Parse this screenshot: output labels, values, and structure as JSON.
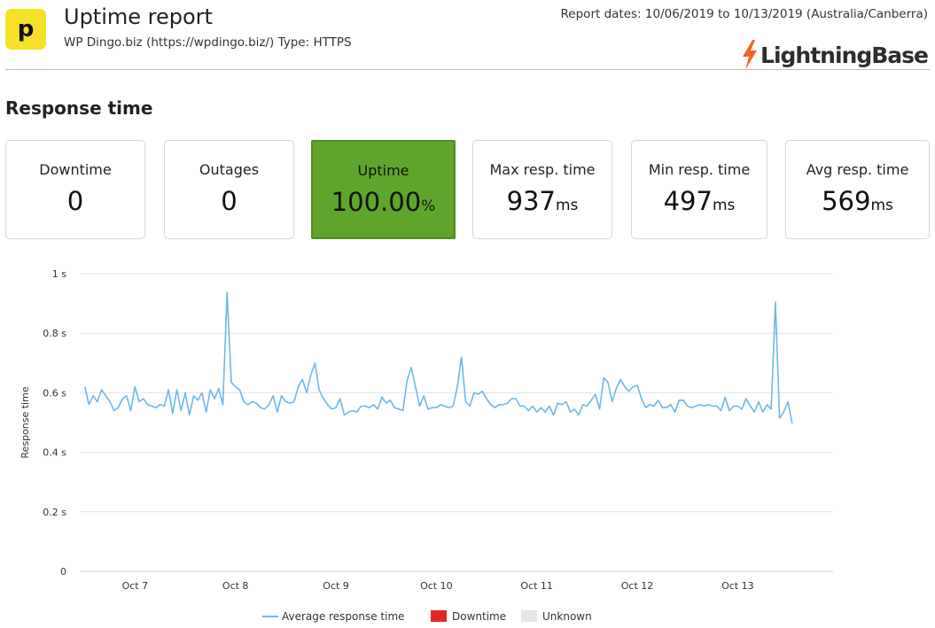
{
  "header": {
    "logo_glyph": "p",
    "title": "Uptime report",
    "subtitle": "WP Dingo.biz (https://wpdingo.biz/) Type: HTTPS",
    "report_dates": "Report dates: 10/06/2019 to 10/13/2019 (Australia/Canberra)",
    "brand_name": "LightningBase",
    "brand_icon": "lightning-bolt-icon",
    "brand_icon_color": "#f26722"
  },
  "section_title": "Response time",
  "cards": [
    {
      "label": "Downtime",
      "value": "0",
      "unit": ""
    },
    {
      "label": "Outages",
      "value": "0",
      "unit": ""
    },
    {
      "label": "Uptime",
      "value": "100.00",
      "unit": "%",
      "highlight": true,
      "color": "#5fa52b"
    },
    {
      "label": "Max resp. time",
      "value": "937",
      "unit": "ms"
    },
    {
      "label": "Min resp. time",
      "value": "497",
      "unit": "ms"
    },
    {
      "label": "Avg resp. time",
      "value": "569",
      "unit": "ms"
    }
  ],
  "chart_data": {
    "type": "line",
    "ylabel": "Response time",
    "yticks": [
      {
        "value": 0,
        "label": "0"
      },
      {
        "value": 0.2,
        "label": "0.2 s"
      },
      {
        "value": 0.4,
        "label": "0.4 s"
      },
      {
        "value": 0.6,
        "label": "0.6 s"
      },
      {
        "value": 0.8,
        "label": "0.8 s"
      },
      {
        "value": 1,
        "label": "1 s"
      }
    ],
    "ylim": [
      0,
      1
    ],
    "xlim_days": [
      6.45,
      13.95
    ],
    "xticks": [
      {
        "day": 7,
        "label": "Oct 7"
      },
      {
        "day": 8,
        "label": "Oct 8"
      },
      {
        "day": 9,
        "label": "Oct 9"
      },
      {
        "day": 10,
        "label": "Oct 10"
      },
      {
        "day": 11,
        "label": "Oct 11"
      },
      {
        "day": 12,
        "label": "Oct 12"
      },
      {
        "day": 13,
        "label": "Oct 13"
      }
    ],
    "grid": true,
    "legend_position": "bottom",
    "legend": [
      {
        "name": "Average response time",
        "color": "#6cb8ea",
        "kind": "line"
      },
      {
        "name": "Downtime",
        "color": "#e12626",
        "kind": "box"
      },
      {
        "name": "Unknown",
        "color": "#e6e6e6",
        "kind": "box"
      }
    ],
    "series": [
      {
        "name": "Average response time",
        "color": "#6cb8ea",
        "x_start_day": 6.5,
        "x_step_days": 0.04167,
        "values": [
          0.62,
          0.56,
          0.59,
          0.57,
          0.61,
          0.59,
          0.57,
          0.54,
          0.55,
          0.58,
          0.59,
          0.54,
          0.62,
          0.57,
          0.58,
          0.56,
          0.555,
          0.55,
          0.56,
          0.555,
          0.61,
          0.53,
          0.61,
          0.54,
          0.6,
          0.525,
          0.59,
          0.575,
          0.6,
          0.535,
          0.61,
          0.58,
          0.615,
          0.56,
          0.937,
          0.635,
          0.62,
          0.61,
          0.57,
          0.56,
          0.57,
          0.565,
          0.55,
          0.545,
          0.56,
          0.59,
          0.535,
          0.59,
          0.57,
          0.565,
          0.57,
          0.62,
          0.645,
          0.6,
          0.66,
          0.7,
          0.61,
          0.58,
          0.56,
          0.545,
          0.55,
          0.58,
          0.525,
          0.535,
          0.54,
          0.535,
          0.555,
          0.555,
          0.55,
          0.56,
          0.545,
          0.585,
          0.565,
          0.575,
          0.55,
          0.545,
          0.54,
          0.64,
          0.685,
          0.62,
          0.555,
          0.59,
          0.545,
          0.55,
          0.55,
          0.56,
          0.555,
          0.55,
          0.555,
          0.62,
          0.72,
          0.57,
          0.555,
          0.6,
          0.595,
          0.605,
          0.58,
          0.56,
          0.55,
          0.56,
          0.56,
          0.565,
          0.58,
          0.58,
          0.555,
          0.555,
          0.54,
          0.555,
          0.535,
          0.55,
          0.535,
          0.555,
          0.525,
          0.565,
          0.56,
          0.57,
          0.535,
          0.545,
          0.525,
          0.56,
          0.555,
          0.575,
          0.595,
          0.545,
          0.65,
          0.635,
          0.57,
          0.615,
          0.645,
          0.62,
          0.605,
          0.62,
          0.625,
          0.58,
          0.55,
          0.56,
          0.555,
          0.575,
          0.55,
          0.55,
          0.56,
          0.535,
          0.575,
          0.575,
          0.555,
          0.55,
          0.555,
          0.56,
          0.555,
          0.56,
          0.555,
          0.555,
          0.54,
          0.585,
          0.54,
          0.555,
          0.555,
          0.545,
          0.58,
          0.555,
          0.535,
          0.57,
          0.535,
          0.56,
          0.545,
          0.905,
          0.515,
          0.535,
          0.57,
          0.497
        ]
      }
    ]
  }
}
